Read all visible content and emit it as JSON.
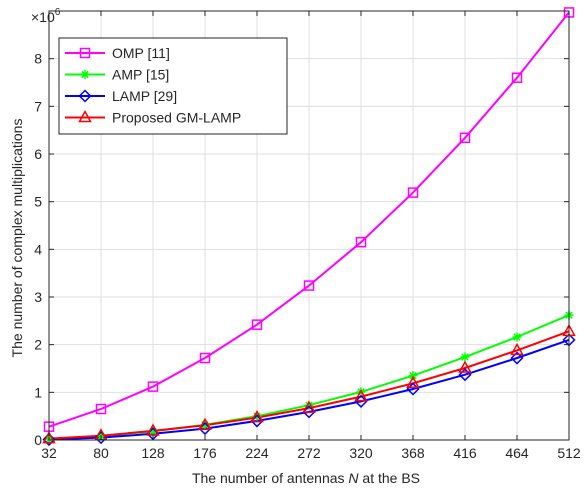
{
  "chart_data": {
    "type": "line",
    "xlabel_prefix": "The number of antennas ",
    "xlabel_var": "N",
    "xlabel_suffix": " at the BS",
    "ylabel": "The number of complex multiplications",
    "y_exponent_base": "×10",
    "y_exponent_power": "6",
    "x": [
      32,
      80,
      128,
      176,
      224,
      272,
      320,
      368,
      416,
      464,
      512
    ],
    "x_tick_labels": [
      "32",
      "80",
      "128",
      "176",
      "224",
      "272",
      "320",
      "368",
      "416",
      "464",
      "512"
    ],
    "y_ticks": [
      0,
      1,
      2,
      3,
      4,
      5,
      6,
      7,
      8
    ],
    "y_tick_labels": [
      "0",
      "1",
      "2",
      "3",
      "4",
      "5",
      "6",
      "7",
      "8"
    ],
    "xlim": [
      32,
      512
    ],
    "ylim": [
      0,
      9
    ],
    "grid": true,
    "legend_position": "top-left",
    "series": [
      {
        "name": "OMP [11]",
        "color": "#ff00ff",
        "marker": "square",
        "values": [
          0.28,
          0.65,
          1.12,
          1.72,
          2.42,
          3.24,
          4.15,
          5.19,
          6.34,
          7.6,
          8.97
        ]
      },
      {
        "name": "AMP [15]",
        "color": "#00ff00",
        "marker": "asterisk",
        "values": [
          0.02,
          0.08,
          0.18,
          0.32,
          0.5,
          0.73,
          1.01,
          1.35,
          1.74,
          2.16,
          2.62
        ]
      },
      {
        "name": "LAMP [29]",
        "color": "#0000ff",
        "marker": "diamond",
        "values": [
          0.01,
          0.05,
          0.13,
          0.24,
          0.4,
          0.59,
          0.81,
          1.07,
          1.37,
          1.72,
          2.1
        ]
      },
      {
        "name": "Proposed GM-LAMP",
        "color": "#ff0000",
        "marker": "triangle",
        "values": [
          0.03,
          0.09,
          0.19,
          0.31,
          0.47,
          0.67,
          0.91,
          1.19,
          1.51,
          1.88,
          2.28
        ]
      }
    ]
  }
}
